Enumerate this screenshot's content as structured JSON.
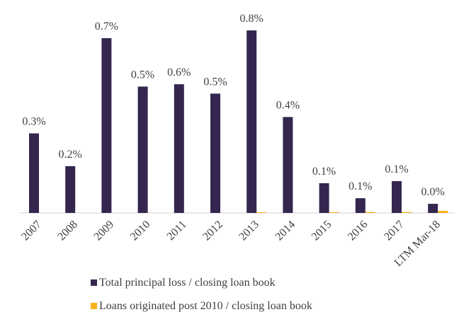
{
  "chart_data": {
    "type": "bar",
    "categories": [
      "2007",
      "2008",
      "2009",
      "2010",
      "2011",
      "2012",
      "2013",
      "2014",
      "2015",
      "2016",
      "2017",
      "LTM Mar-18"
    ],
    "series": [
      {
        "name": "Total principal loss / closing loan book",
        "color": "#34264f",
        "values": [
          0.34,
          0.2,
          0.747,
          0.54,
          0.55,
          0.51,
          0.78,
          0.41,
          0.127,
          0.063,
          0.136,
          0.039
        ],
        "value_labels": [
          "0.3%",
          "0.2%",
          "0.7%",
          "0.5%",
          "0.6%",
          "0.5%",
          "0.8%",
          "0.4%",
          "0.1%",
          "0.1%",
          "0.1%",
          "0.0%"
        ]
      },
      {
        "name": "Loans originated post 2010 / closing loan book",
        "color": "#f5b21b",
        "values": [
          0,
          0,
          0,
          0,
          0,
          0,
          0.003,
          0,
          0.003,
          0.004,
          0.004,
          0.009
        ]
      }
    ],
    "legend": "bottom"
  }
}
